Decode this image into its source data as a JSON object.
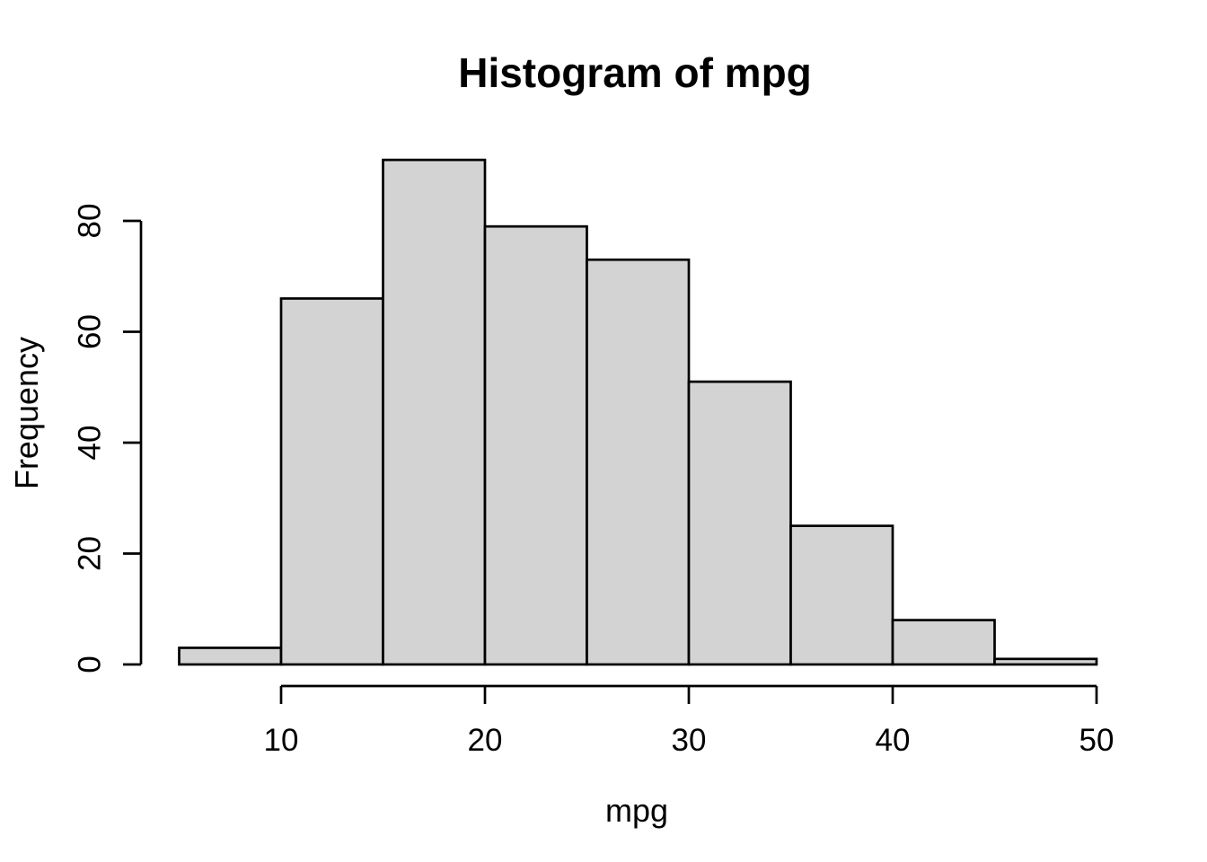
{
  "figure": {
    "background": "#ffffff"
  },
  "chart_data": {
    "type": "bar",
    "subtype": "histogram",
    "title": "Histogram of mpg",
    "xlabel": "mpg",
    "ylabel": "Frequency",
    "bin_edges": [
      5,
      10,
      15,
      20,
      25,
      30,
      35,
      40,
      45,
      50
    ],
    "categories": [
      "5-10",
      "10-15",
      "15-20",
      "20-25",
      "25-30",
      "30-35",
      "35-40",
      "40-45",
      "45-50"
    ],
    "values": [
      3,
      66,
      91,
      79,
      73,
      51,
      25,
      8,
      1
    ],
    "x_ticks": [
      10,
      20,
      30,
      40,
      50
    ],
    "y_ticks": [
      0,
      20,
      40,
      60,
      80
    ],
    "xlim": [
      5,
      50
    ],
    "ylim": [
      0,
      91
    ],
    "grid": false,
    "legend": false,
    "bar_fill": "#d3d3d3",
    "bar_stroke": "#000000",
    "axis_color": "#000000",
    "text_color": "#000000"
  }
}
